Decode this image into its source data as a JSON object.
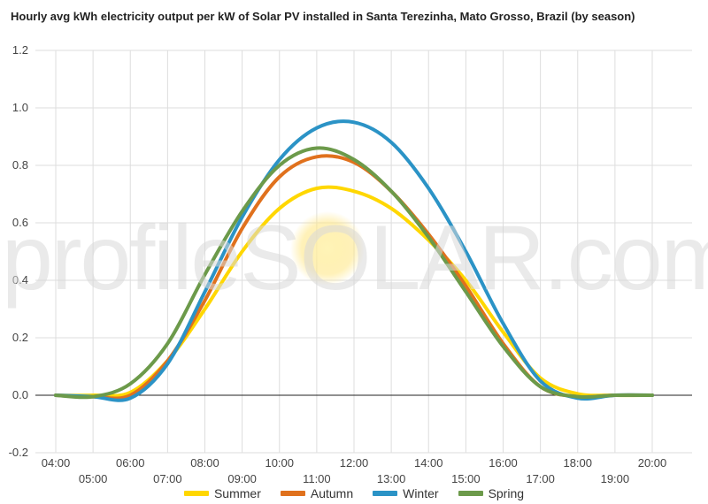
{
  "chart_data": {
    "type": "line",
    "title": "Hourly avg kWh electricity output per kW of Solar PV installed in Santa Terezinha, Mato Grosso, Brazil (by season)",
    "xlabel": "",
    "ylabel": "",
    "x": [
      "04:00",
      "05:00",
      "06:00",
      "07:00",
      "08:00",
      "09:00",
      "10:00",
      "11:00",
      "12:00",
      "13:00",
      "14:00",
      "15:00",
      "16:00",
      "17:00",
      "18:00",
      "19:00",
      "20:00"
    ],
    "ylim": [
      -0.2,
      1.2
    ],
    "yticks": [
      "-0.2",
      "0.0",
      "0.2",
      "0.4",
      "0.6",
      "0.8",
      "1.0",
      "1.2"
    ],
    "grid": true,
    "legend": "bottom",
    "watermark": "profileSOLAR.com",
    "series": [
      {
        "name": "Summer",
        "color": "#ffd700",
        "values": [
          0.0,
          0.0,
          0.01,
          0.12,
          0.3,
          0.5,
          0.65,
          0.72,
          0.71,
          0.65,
          0.54,
          0.4,
          0.22,
          0.06,
          0.005,
          0.0,
          0.0
        ]
      },
      {
        "name": "Autumn",
        "color": "#e0711d",
        "values": [
          0.0,
          -0.005,
          0.0,
          0.12,
          0.33,
          0.58,
          0.76,
          0.83,
          0.81,
          0.71,
          0.56,
          0.38,
          0.18,
          0.03,
          -0.005,
          0.0,
          0.0
        ]
      },
      {
        "name": "Winter",
        "color": "#2b93c6",
        "values": [
          0.0,
          -0.005,
          -0.01,
          0.11,
          0.36,
          0.62,
          0.82,
          0.93,
          0.95,
          0.88,
          0.72,
          0.5,
          0.25,
          0.05,
          -0.01,
          0.0,
          0.0
        ]
      },
      {
        "name": "Spring",
        "color": "#6c9a4a",
        "values": [
          0.0,
          -0.005,
          0.04,
          0.18,
          0.42,
          0.64,
          0.8,
          0.86,
          0.82,
          0.71,
          0.55,
          0.36,
          0.17,
          0.03,
          -0.005,
          0.0,
          0.0
        ]
      }
    ]
  }
}
